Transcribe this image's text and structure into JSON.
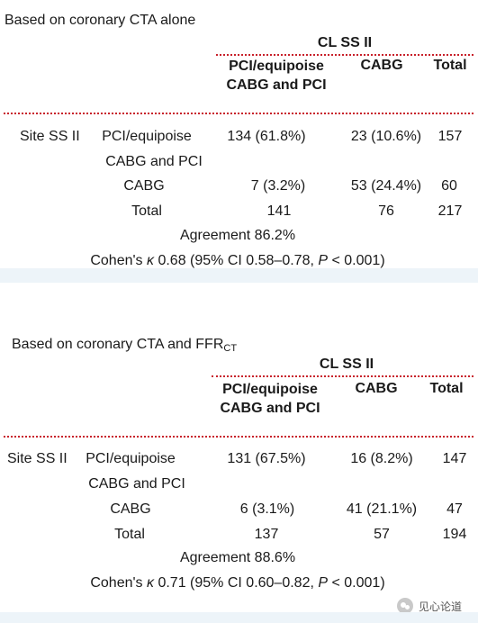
{
  "table1": {
    "title": "Based on coronary CTA alone",
    "group_header": "CL SS II",
    "col1_line1": "PCI/equipoise",
    "col1_line2": "CABG and PCI",
    "col2": "CABG",
    "col3": "Total",
    "row_group_label": "Site SS II",
    "row1_label_line1": "PCI/equipoise",
    "row1_label_line2": "CABG and PCI",
    "row1": [
      "134 (61.8%)",
      "23 (10.6%)",
      "157"
    ],
    "row2_label": "CABG",
    "row2": [
      "7 (3.2%)",
      "53 (24.4%)",
      "60"
    ],
    "total_label": "Total",
    "total": [
      "141",
      "76",
      "217"
    ],
    "agreement": "Agreement 86.2%",
    "kappa_prefix": "Cohen's",
    "kappa_symbol": "κ",
    "kappa_mid": "0.68 (95% CI 0.58–0.78,",
    "p_symbol": "P",
    "p_value": "< 0.001)"
  },
  "table2": {
    "title_main": "Based on coronary CTA and FFR",
    "title_sub": "CT",
    "group_header": "CL SS II",
    "col1_line1": "PCI/equipoise",
    "col1_line2": "CABG and PCI",
    "col2": "CABG",
    "col3": "Total",
    "row_group_label": "Site SS II",
    "row1_label_line1": "PCI/equipoise",
    "row1_label_line2": "CABG and PCI",
    "row1": [
      "131 (67.5%)",
      "16 (8.2%)",
      "147"
    ],
    "row2_label": "CABG",
    "row2": [
      "6 (3.1%)",
      "41 (21.1%)",
      "47"
    ],
    "total_label": "Total",
    "total": [
      "137",
      "57",
      "194"
    ],
    "agreement": "Agreement 88.6%",
    "kappa_prefix": "Cohen's",
    "kappa_symbol": "κ",
    "kappa_mid": "0.71 (95% CI 0.60–0.82,",
    "p_symbol": "P",
    "p_value": "< 0.001)"
  },
  "watermark": {
    "text": "见心论道",
    "icon": "wechat-icon"
  },
  "colors": {
    "rule": "#c8202a",
    "band": "#edf4f9",
    "text": "#1a1a1a"
  }
}
